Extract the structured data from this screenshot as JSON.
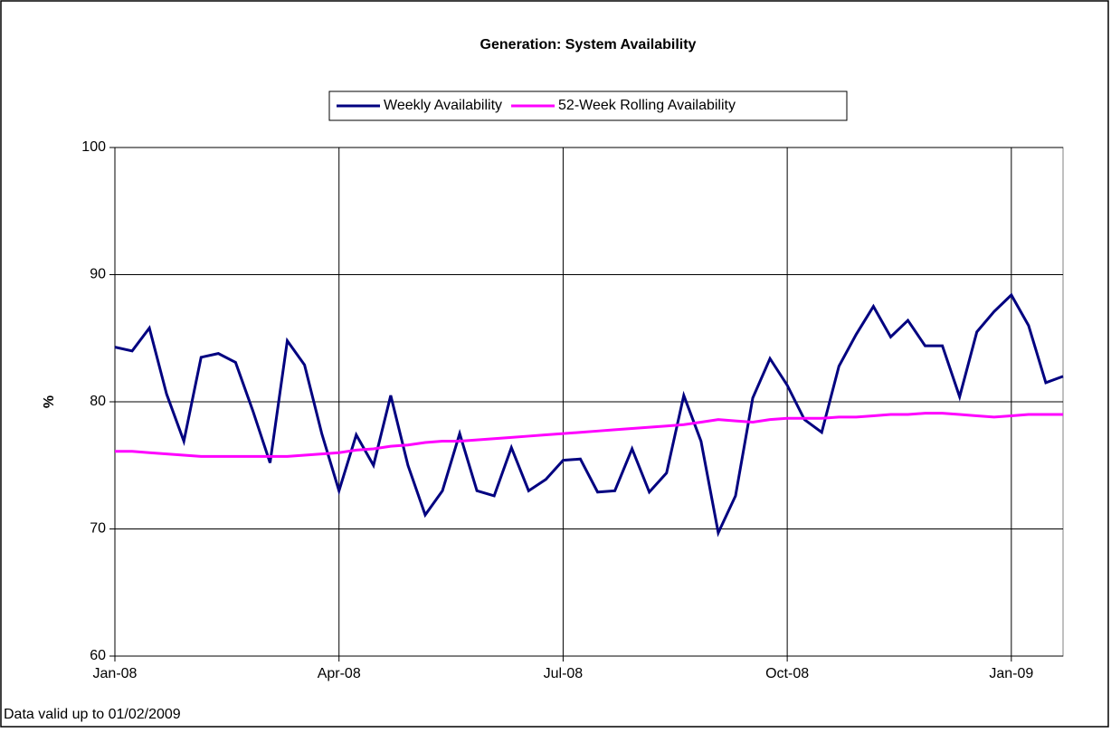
{
  "chart_data": {
    "type": "line",
    "title": "Generation: System Availability",
    "ylabel": "%",
    "footnote": "Data valid up to 01/02/2009",
    "x": [
      0,
      1,
      2,
      3,
      4,
      5,
      6,
      7,
      8,
      9,
      10,
      11,
      12,
      13,
      14,
      15,
      16,
      17,
      18,
      19,
      20,
      21,
      22,
      23,
      24,
      25,
      26,
      27,
      28,
      29,
      30,
      31,
      32,
      33,
      34,
      35,
      36,
      37,
      38,
      39,
      40,
      41,
      42,
      43,
      44,
      45,
      46,
      47,
      48,
      49,
      50,
      51,
      52,
      53,
      54,
      55
    ],
    "series": [
      {
        "name": "Weekly Availability",
        "color": "#000080",
        "values": [
          84.3,
          84.0,
          85.8,
          80.6,
          76.9,
          83.5,
          83.8,
          83.1,
          79.3,
          75.2,
          84.8,
          82.9,
          77.5,
          73.0,
          77.4,
          75.0,
          80.5,
          75.0,
          71.1,
          73.0,
          77.5,
          73.0,
          72.6,
          76.4,
          73.0,
          73.9,
          75.4,
          75.5,
          72.9,
          73.0,
          76.3,
          72.9,
          74.4,
          80.5,
          76.9,
          69.7,
          72.6,
          80.3,
          83.4,
          81.3,
          78.6,
          77.6,
          82.8,
          85.3,
          87.5,
          85.1,
          86.4,
          84.4,
          84.4,
          80.4,
          85.5,
          87.1,
          88.4,
          86.0,
          81.5,
          82.0
        ]
      },
      {
        "name": "52-Week Rolling Availability",
        "color": "#ff00ff",
        "values": [
          76.1,
          76.1,
          76.0,
          75.9,
          75.8,
          75.7,
          75.7,
          75.7,
          75.7,
          75.7,
          75.7,
          75.8,
          75.9,
          76.0,
          76.2,
          76.3,
          76.5,
          76.6,
          76.8,
          76.9,
          76.9,
          77.0,
          77.1,
          77.2,
          77.3,
          77.4,
          77.5,
          77.6,
          77.7,
          77.8,
          77.9,
          78.0,
          78.1,
          78.2,
          78.4,
          78.6,
          78.5,
          78.4,
          78.6,
          78.7,
          78.7,
          78.7,
          78.8,
          78.8,
          78.9,
          79.0,
          79.0,
          79.1,
          79.1,
          79.0,
          78.9,
          78.8,
          78.9,
          79.0,
          79.0,
          79.0
        ]
      }
    ],
    "xlim": [
      0,
      55
    ],
    "xticks": [
      {
        "value": 0,
        "label": "Jan-08"
      },
      {
        "value": 13,
        "label": "Apr-08"
      },
      {
        "value": 26,
        "label": "Jul-08"
      },
      {
        "value": 39,
        "label": "Oct-08"
      },
      {
        "value": 52,
        "label": "Jan-09"
      }
    ],
    "ylim": [
      60,
      100
    ],
    "yticks": [
      60,
      70,
      80,
      90,
      100
    ],
    "grid": true,
    "legend": "top"
  }
}
